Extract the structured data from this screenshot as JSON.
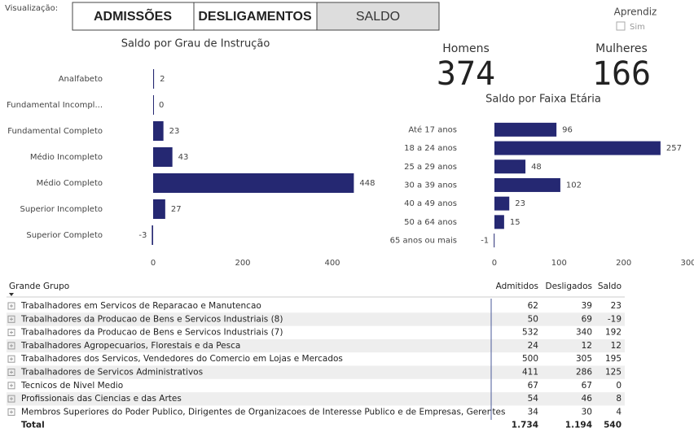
{
  "visualization_label": "Visualização:",
  "buttons": [
    "ADMISSÕES",
    "DESLIGAMENTOS",
    "SALDO"
  ],
  "slicer": {
    "title": "Aprendiz",
    "option": "Sim"
  },
  "kpis": [
    {
      "label": "Homens",
      "value": "374"
    },
    {
      "label": "Mulheres",
      "value": "166"
    }
  ],
  "chart_data": [
    {
      "type": "bar",
      "orientation": "horizontal",
      "title": "Saldo por Grau de Instrução",
      "categories": [
        "Analfabeto",
        "Fundamental Incompl...",
        "Fundamental Completo",
        "Médio Incompleto",
        "Médio Completo",
        "Superior Incompleto",
        "Superior Completo"
      ],
      "values": [
        2,
        0,
        23,
        43,
        448,
        27,
        -3
      ],
      "color": "#252872",
      "xlim": [
        -5,
        460
      ],
      "xticks": [
        0,
        200,
        400
      ]
    },
    {
      "type": "bar",
      "orientation": "horizontal",
      "title": "Saldo por Faixa Etária",
      "categories": [
        "Até 17 anos",
        "18 a 24 anos",
        "25 a 29 anos",
        "30 a 39 anos",
        "40 a 49 anos",
        "50 a 64 anos",
        "65 anos ou mais"
      ],
      "values": [
        96,
        257,
        48,
        102,
        23,
        15,
        -1
      ],
      "color": "#252872",
      "xlim": [
        -2,
        300
      ],
      "xticks": [
        0,
        100,
        200,
        300
      ]
    }
  ],
  "table": {
    "columns": [
      "Grande Grupo",
      "Admitidos",
      "Desligados",
      "Saldo"
    ],
    "rows": [
      [
        "Trabalhadores em Servicos de Reparacao e Manutencao",
        "62",
        "39",
        "23"
      ],
      [
        "Trabalhadores da Producao de Bens e Servicos Industriais (8)",
        "50",
        "69",
        "-19"
      ],
      [
        "Trabalhadores da Producao de Bens e Servicos Industriais (7)",
        "532",
        "340",
        "192"
      ],
      [
        "Trabalhadores Agropecuarios, Florestais e da Pesca",
        "24",
        "12",
        "12"
      ],
      [
        "Trabalhadores dos Servicos, Vendedores do Comercio em Lojas e Mercados",
        "500",
        "305",
        "195"
      ],
      [
        "Trabalhadores de Servicos Administrativos",
        "411",
        "286",
        "125"
      ],
      [
        "Tecnicos de Nivel Medio",
        "67",
        "67",
        "0"
      ],
      [
        "Profissionais das Ciencias e das Artes",
        "54",
        "46",
        "8"
      ],
      [
        "Membros Superiores do Poder Publico, Dirigentes de Organizacoes de Interesse Publico e de Empresas, Gerentes",
        "34",
        "30",
        "4"
      ]
    ],
    "total": [
      "Total",
      "1.734",
      "1.194",
      "540"
    ]
  }
}
